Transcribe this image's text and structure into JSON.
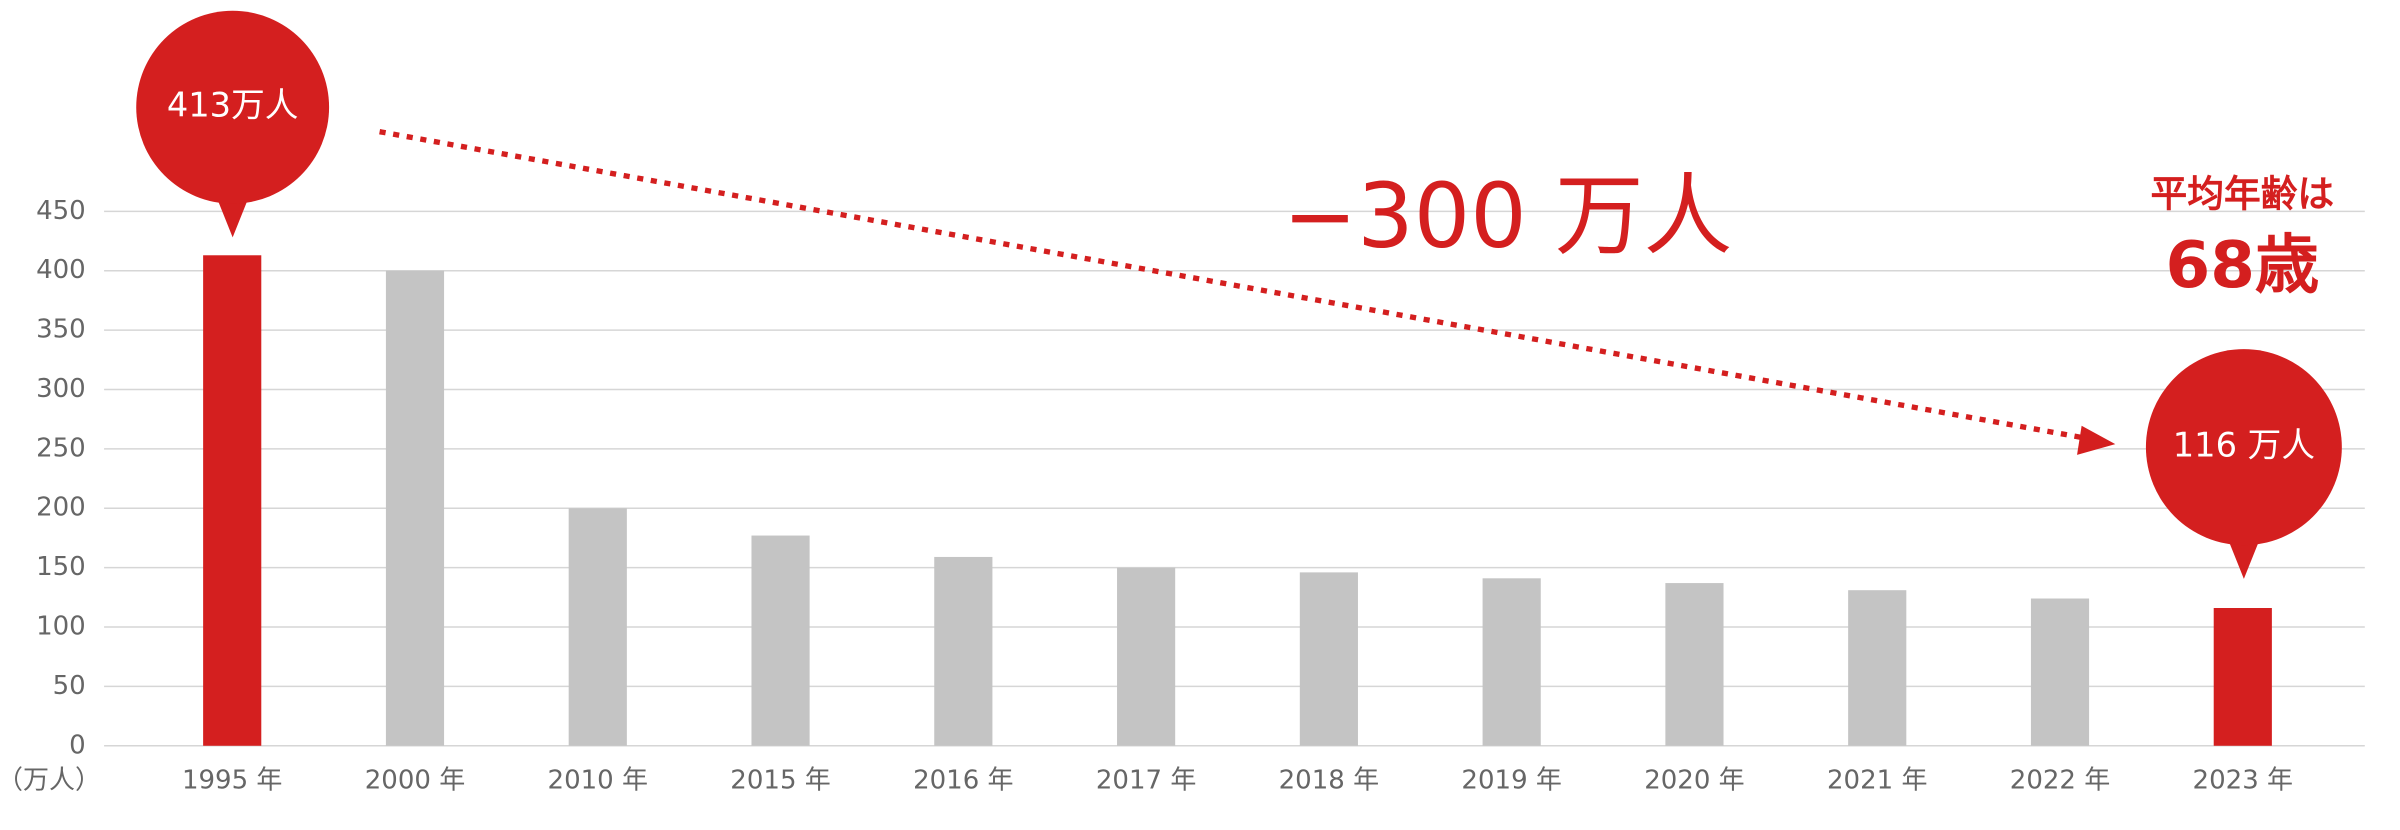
{
  "chart_data": {
    "type": "bar",
    "categories": [
      "1995 年",
      "2000 年",
      "2010 年",
      "2015 年",
      "2016 年",
      "2017 年",
      "2018 年",
      "2019 年",
      "2020 年",
      "2021 年",
      "2022 年",
      "2023 年"
    ],
    "values": [
      413,
      400,
      200,
      177,
      159,
      150,
      146,
      141,
      137,
      131,
      124,
      116
    ],
    "colors": [
      "#d41f1f",
      "#c4c4c4",
      "#c4c4c4",
      "#c4c4c4",
      "#c4c4c4",
      "#c4c4c4",
      "#c4c4c4",
      "#c4c4c4",
      "#c4c4c4",
      "#c4c4c4",
      "#c4c4c4",
      "#d41f1f"
    ],
    "ylim": [
      0,
      450
    ],
    "yticks": [
      0,
      50,
      100,
      150,
      200,
      250,
      300,
      350,
      400,
      450
    ],
    "grid": true,
    "y_unit_label": "（万人）",
    "callouts": [
      "413万人",
      "116 万人"
    ],
    "change_label": "−300 万人",
    "age_caption": "平均年齢は",
    "age_value": "68歳",
    "accent_color": "#d41f1f"
  }
}
